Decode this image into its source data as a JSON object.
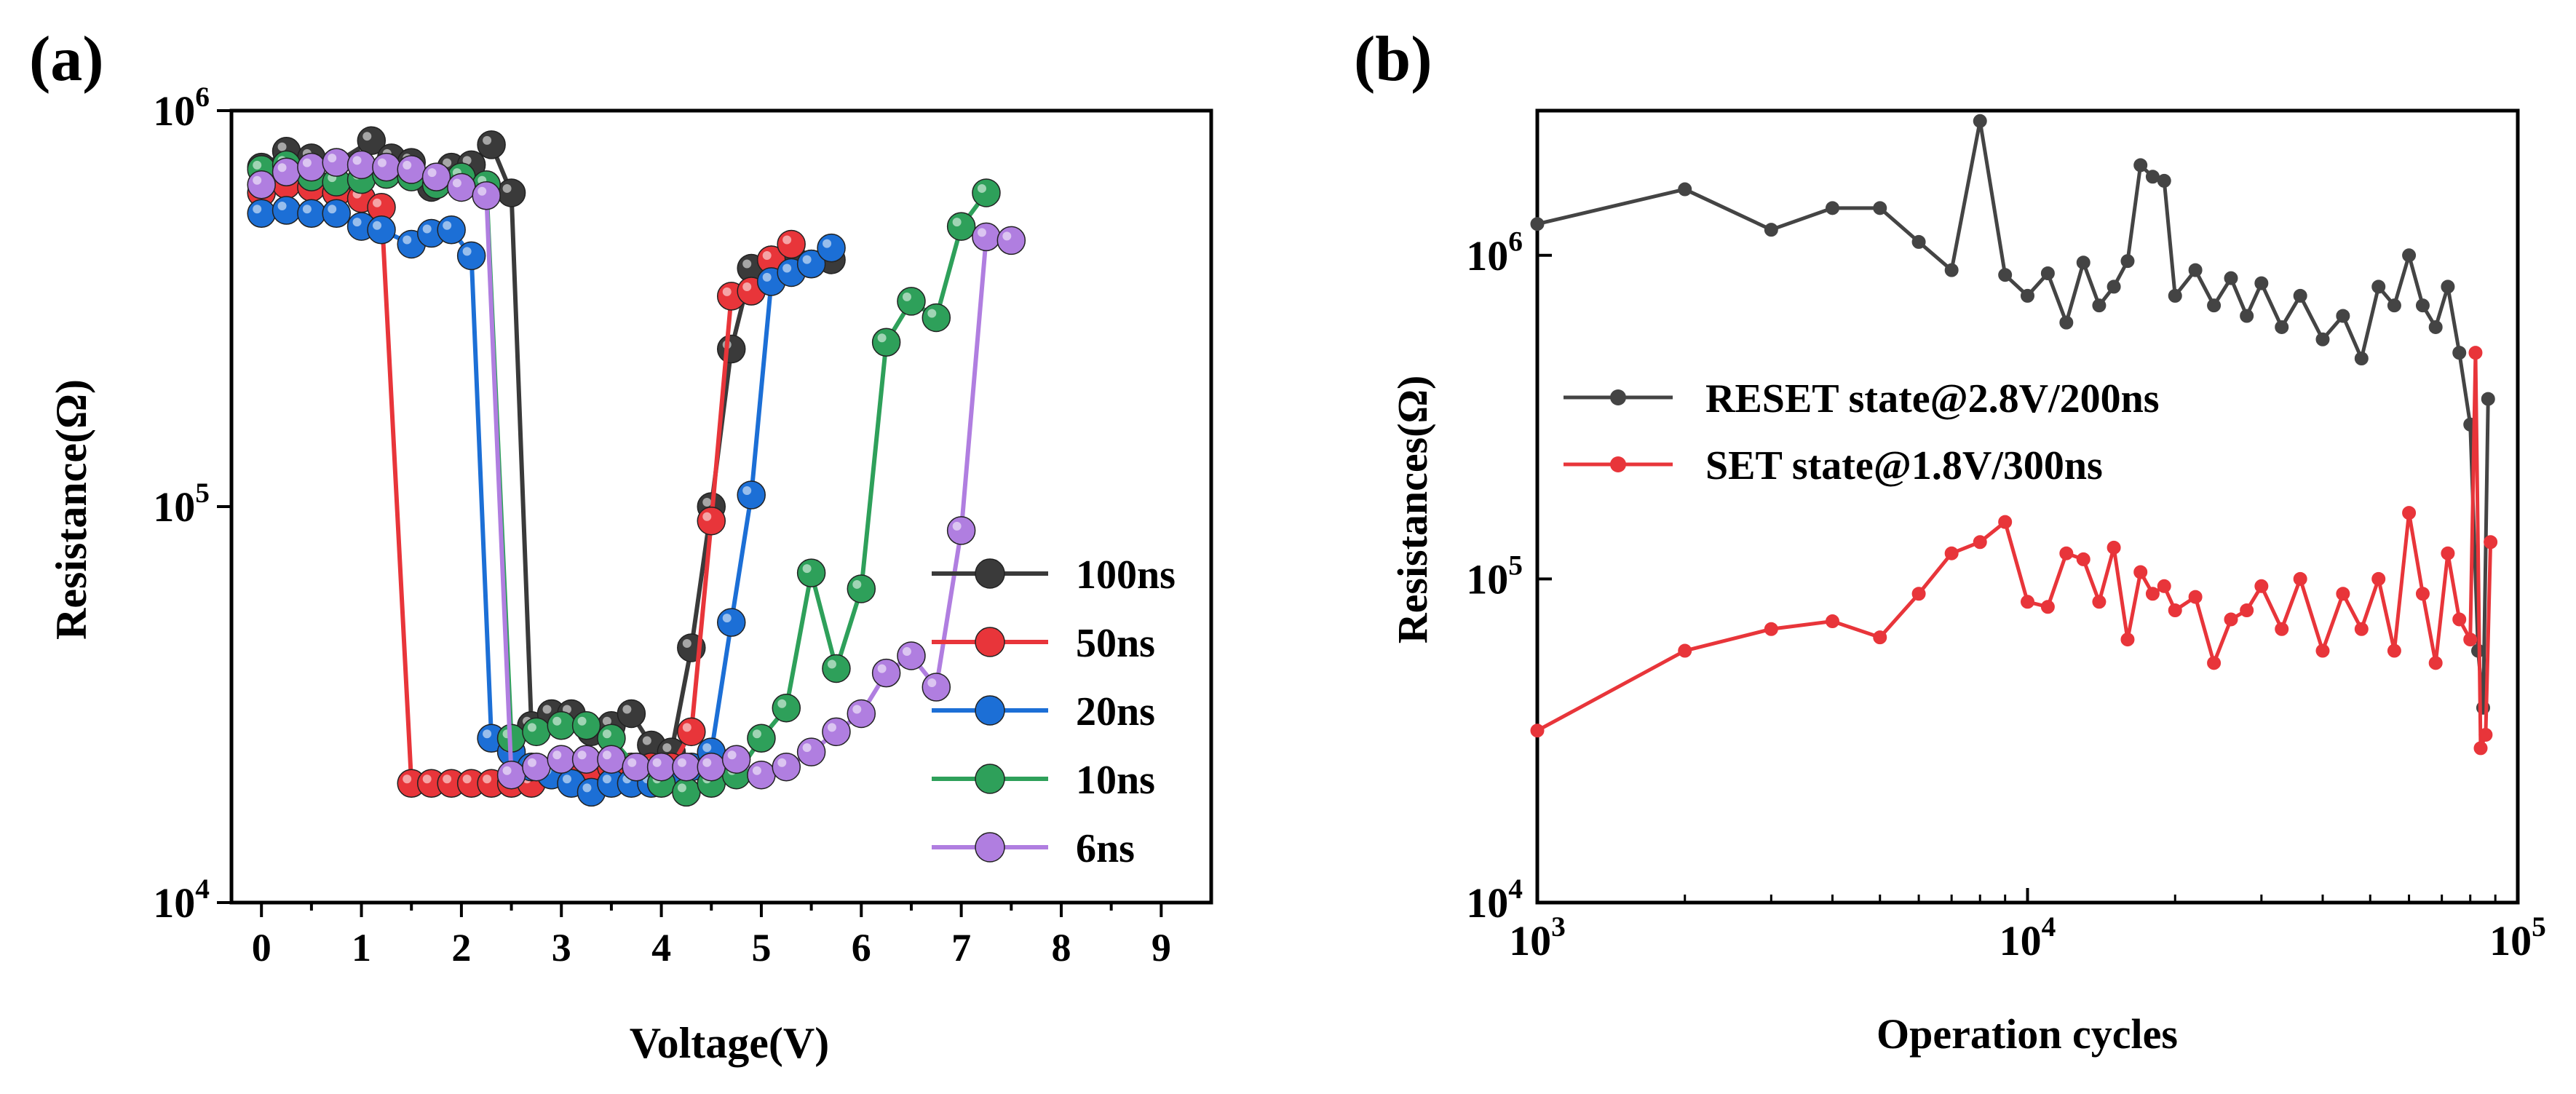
{
  "colors": {
    "100ns": "#3a3a3a",
    "50ns": "#e8353a",
    "20ns": "#1c6fd6",
    "10ns": "#2ea05a",
    "6ns": "#b07ee0",
    "reset": "#444444",
    "set": "#e8353a"
  },
  "chart_data": [
    {
      "panel_label": "(a)",
      "type": "scatter",
      "xlabel": "Voltage(V)",
      "ylabel": "Resistance(Ω)",
      "xlim": [
        -0.3,
        9.5
      ],
      "ylim": [
        10000,
        1000000
      ],
      "yscale": "log",
      "xticks": [
        0,
        1,
        2,
        3,
        4,
        5,
        6,
        7,
        8,
        9
      ],
      "xtick_labels": [
        "0",
        "1",
        "2",
        "3",
        "4",
        "5",
        "6",
        "7",
        "8",
        "9"
      ],
      "yticks": [
        {
          "value": 10000,
          "mantissa": "10",
          "exp": "4"
        },
        {
          "value": 100000,
          "mantissa": "10",
          "exp": "5"
        },
        {
          "value": 1000000,
          "mantissa": "10",
          "exp": "6"
        }
      ],
      "legend_position": "lower-right",
      "series": [
        {
          "name": "100ns",
          "color_key": "100ns",
          "x": [
            0.0,
            0.25,
            0.5,
            0.75,
            1.1,
            1.3,
            1.5,
            1.7,
            1.9,
            2.1,
            2.3,
            2.5,
            2.7,
            2.9,
            3.1,
            3.3,
            3.5,
            3.7,
            3.9,
            4.1,
            4.3,
            4.5,
            4.7,
            4.9,
            5.1,
            5.3,
            5.5,
            5.7
          ],
          "y": [
            720000,
            790000,
            760000,
            740000,
            840000,
            760000,
            740000,
            640000,
            720000,
            730000,
            820000,
            620000,
            28000,
            30000,
            30000,
            27000,
            28000,
            30000,
            25000,
            24000,
            44000,
            100000,
            250000,
            400000,
            420000,
            430000,
            410000,
            420000
          ]
        },
        {
          "name": "50ns",
          "color_key": "50ns",
          "x": [
            0.0,
            0.25,
            0.5,
            0.75,
            1.0,
            1.2,
            1.5,
            1.7,
            1.9,
            2.1,
            2.3,
            2.5,
            2.7,
            2.9,
            3.1,
            3.3,
            3.5,
            3.7,
            3.9,
            4.1,
            4.3,
            4.5,
            4.7,
            4.9,
            5.1,
            5.3
          ],
          "y": [
            620000,
            650000,
            640000,
            620000,
            600000,
            570000,
            20000,
            20000,
            20000,
            20000,
            20000,
            20000,
            20000,
            21000,
            21000,
            22000,
            22000,
            22000,
            22000,
            22000,
            27000,
            92000,
            340000,
            350000,
            420000,
            460000
          ]
        },
        {
          "name": "20ns",
          "color_key": "20ns",
          "x": [
            0.0,
            0.25,
            0.5,
            0.75,
            1.0,
            1.2,
            1.5,
            1.7,
            1.9,
            2.1,
            2.3,
            2.5,
            2.7,
            2.9,
            3.1,
            3.3,
            3.5,
            3.7,
            3.9,
            4.1,
            4.3,
            4.5,
            4.7,
            4.9,
            5.1,
            5.3,
            5.5,
            5.7
          ],
          "y": [
            550000,
            560000,
            550000,
            550000,
            510000,
            500000,
            460000,
            490000,
            500000,
            430000,
            26000,
            24000,
            22000,
            21000,
            20000,
            19000,
            20000,
            20000,
            20000,
            21000,
            22000,
            24000,
            51000,
            107000,
            370000,
            390000,
            410000,
            450000
          ]
        },
        {
          "name": "10ns",
          "color_key": "10ns",
          "x": [
            0.0,
            0.25,
            0.5,
            0.75,
            1.0,
            1.25,
            1.5,
            1.75,
            2.0,
            2.25,
            2.5,
            2.75,
            3.0,
            3.25,
            3.5,
            3.75,
            4.0,
            4.25,
            4.5,
            4.75,
            5.0,
            5.25,
            5.5,
            5.75,
            6.0,
            6.25,
            6.5,
            6.75,
            7.0,
            7.25
          ],
          "y": [
            710000,
            730000,
            680000,
            660000,
            670000,
            690000,
            680000,
            650000,
            680000,
            650000,
            26000,
            27000,
            28000,
            28000,
            26000,
            22000,
            20000,
            19000,
            20000,
            21000,
            26000,
            31000,
            68000,
            39000,
            62000,
            260000,
            330000,
            300000,
            510000,
            620000
          ]
        },
        {
          "name": "6ns",
          "color_key": "6ns",
          "x": [
            0.0,
            0.25,
            0.5,
            0.75,
            1.0,
            1.25,
            1.5,
            1.75,
            2.0,
            2.25,
            2.5,
            2.75,
            3.0,
            3.25,
            3.5,
            3.75,
            4.0,
            4.25,
            4.5,
            4.75,
            5.0,
            5.25,
            5.5,
            5.75,
            6.0,
            6.25,
            6.5,
            6.75,
            7.0,
            7.25,
            7.5
          ],
          "y": [
            650000,
            700000,
            720000,
            740000,
            730000,
            720000,
            710000,
            680000,
            640000,
            610000,
            21000,
            22000,
            23000,
            23000,
            23000,
            22000,
            22000,
            22000,
            22000,
            23000,
            21000,
            22000,
            24000,
            27000,
            30000,
            38000,
            42000,
            35000,
            87000,
            480000,
            470000
          ]
        }
      ]
    },
    {
      "panel_label": "(b)",
      "type": "line",
      "xlabel": "Operation cycles",
      "ylabel": "Resistances(Ω)",
      "xscale": "log",
      "yscale": "log",
      "xlim": [
        1000,
        100000
      ],
      "ylim": [
        10000,
        2800000
      ],
      "xticks": [
        {
          "value": 1000,
          "mantissa": "10",
          "exp": "3"
        },
        {
          "value": 10000,
          "mantissa": "10",
          "exp": "4"
        },
        {
          "value": 100000,
          "mantissa": "10",
          "exp": "5"
        }
      ],
      "yticks": [
        {
          "value": 10000,
          "mantissa": "10",
          "exp": "4"
        },
        {
          "value": 100000,
          "mantissa": "10",
          "exp": "5"
        },
        {
          "value": 1000000,
          "mantissa": "10",
          "exp": "6"
        }
      ],
      "legend_position": "center-left",
      "series": [
        {
          "name": "RESET state@2.8V/200ns",
          "color_key": "reset",
          "x": [
            1000,
            2000,
            3000,
            4000,
            5000,
            6000,
            7000,
            8000,
            9000,
            10000,
            11000,
            12000,
            13000,
            14000,
            15000,
            16000,
            17000,
            18000,
            19000,
            20000,
            22000,
            24000,
            26000,
            28000,
            30000,
            33000,
            36000,
            40000,
            44000,
            48000,
            52000,
            56000,
            60000,
            64000,
            68000,
            72000,
            76000,
            80000,
            83000,
            85000,
            87000
          ],
          "y": [
            1250000,
            1600000,
            1200000,
            1400000,
            1400000,
            1100000,
            900000,
            2600000,
            870000,
            750000,
            880000,
            620000,
            950000,
            700000,
            800000,
            960000,
            1900000,
            1750000,
            1700000,
            750000,
            900000,
            700000,
            850000,
            650000,
            820000,
            600000,
            750000,
            550000,
            650000,
            480000,
            800000,
            700000,
            1000000,
            700000,
            600000,
            800000,
            500000,
            300000,
            60000,
            40000,
            360000
          ]
        },
        {
          "name": "SET state@1.8V/300ns",
          "color_key": "set",
          "x": [
            1000,
            2000,
            3000,
            4000,
            5000,
            6000,
            7000,
            8000,
            9000,
            10000,
            11000,
            12000,
            13000,
            14000,
            15000,
            16000,
            17000,
            18000,
            19000,
            20000,
            22000,
            24000,
            26000,
            28000,
            30000,
            33000,
            36000,
            40000,
            44000,
            48000,
            52000,
            56000,
            60000,
            64000,
            68000,
            72000,
            76000,
            80000,
            82000,
            84000,
            86000,
            88000
          ],
          "y": [
            34000,
            60000,
            70000,
            74000,
            66000,
            90000,
            120000,
            130000,
            150000,
            85000,
            82000,
            120000,
            115000,
            85000,
            125000,
            65000,
            105000,
            90000,
            95000,
            80000,
            88000,
            55000,
            75000,
            80000,
            95000,
            70000,
            100000,
            60000,
            90000,
            70000,
            100000,
            60000,
            160000,
            90000,
            55000,
            120000,
            75000,
            65000,
            500000,
            30000,
            33000,
            130000
          ]
        }
      ]
    }
  ]
}
